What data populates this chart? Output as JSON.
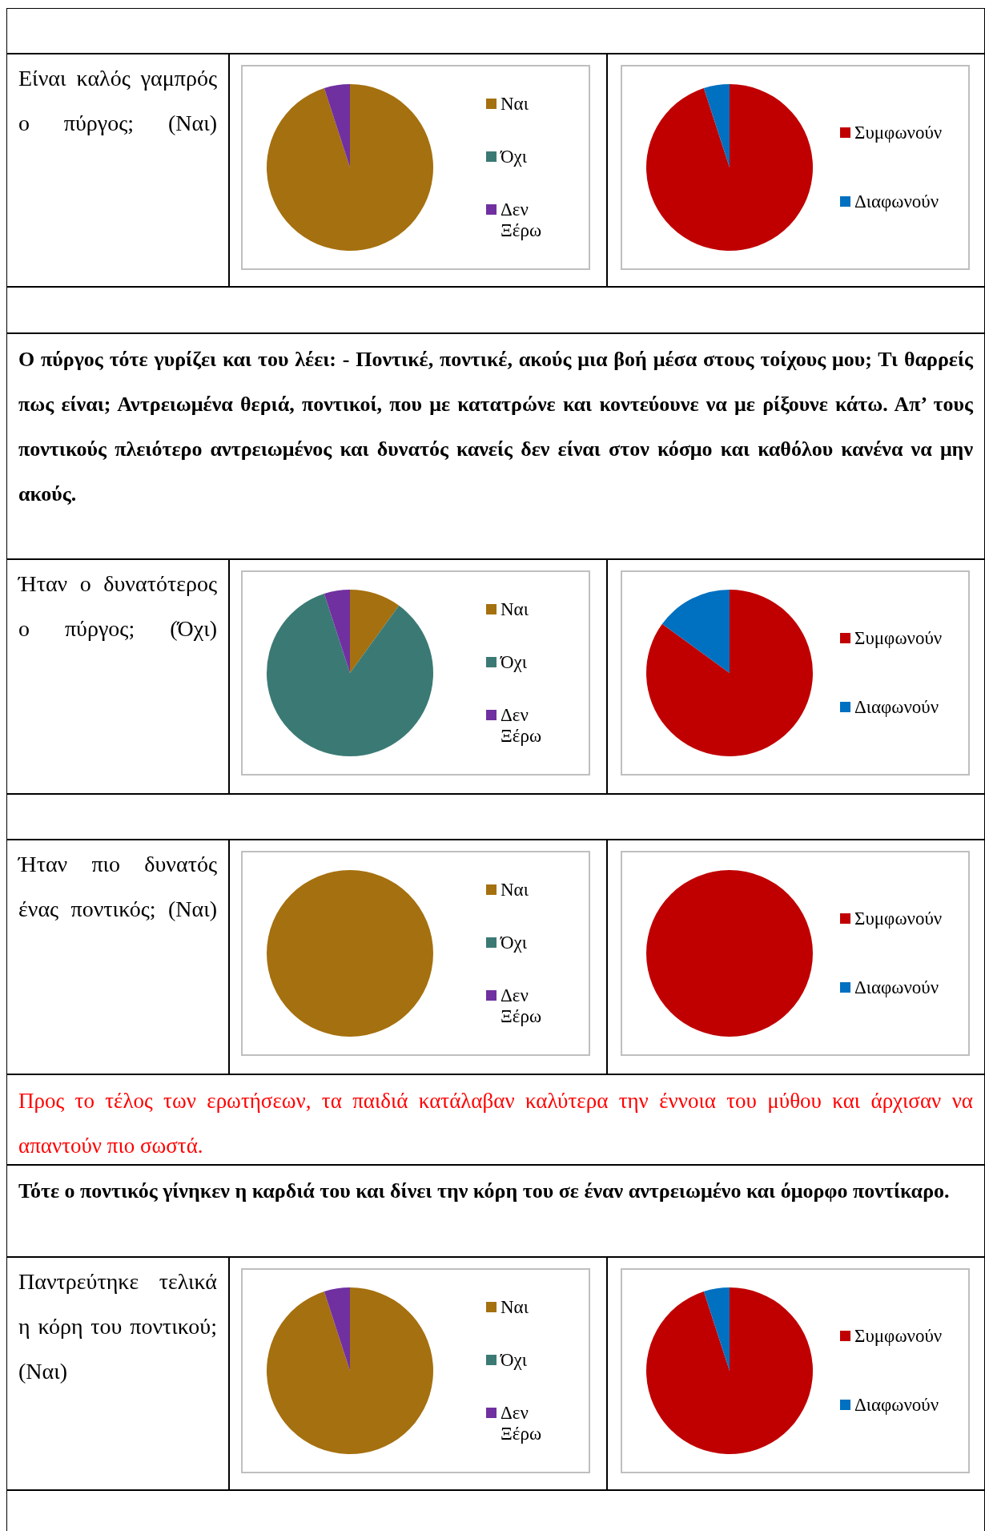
{
  "chart_data": [
    {
      "type": "other",
      "annotations": [
        "Είναι καλός γαμπρός ο πύργος; (Ναι)"
      ]
    },
    {
      "type": "pie",
      "categories": [
        "Ναι",
        "Όχι",
        "Δεν Ξέρω"
      ],
      "values": [
        95,
        0,
        5
      ],
      "colors": [
        "#a5700f",
        "#3b7a74",
        "#7030a0"
      ],
      "legend": "right"
    },
    {
      "type": "pie",
      "categories": [
        "Συμφωνούν",
        "Διαφωνούν"
      ],
      "values": [
        95,
        5
      ],
      "colors": [
        "#c00000",
        "#0070c0"
      ],
      "legend": "right"
    },
    {
      "type": "other",
      "annotations": [
        "Ο πύργος τότε γυρίζει και του λέει: - Ποντικέ, ποντικέ, ακούς μια βοή μέσα στους τοίχους μου; Τι θαρρείς πως είναι; Αντρειωμένα θεριά, ποντικοί, που με κατατρώνε και κοντεύουνε να με ρίξουνε κάτω. Απ’ τους ποντικούς πλειότερο αντρειωμένος και δυνατός κανείς δεν είναι στον κόσμο και καθόλου κανένα να μην ακούς."
      ]
    },
    {
      "type": "other",
      "annotations": [
        "Ήταν ο δυνατότερος ο πύργος; (Όχι)"
      ]
    },
    {
      "type": "pie",
      "categories": [
        "Ναι",
        "Όχι",
        "Δεν Ξέρω"
      ],
      "values": [
        10,
        85,
        5
      ],
      "colors": [
        "#a5700f",
        "#3b7a74",
        "#7030a0"
      ],
      "legend": "right"
    },
    {
      "type": "pie",
      "categories": [
        "Συμφωνούν",
        "Διαφωνούν"
      ],
      "values": [
        85,
        15
      ],
      "colors": [
        "#c00000",
        "#0070c0"
      ],
      "legend": "right"
    },
    {
      "type": "other",
      "annotations": [
        "Ήταν πιο δυνατός ένας ποντικός; (Ναι)"
      ]
    },
    {
      "type": "pie",
      "categories": [
        "Ναι",
        "Όχι",
        "Δεν Ξέρω"
      ],
      "values": [
        100,
        0,
        0
      ],
      "colors": [
        "#a5700f",
        "#3b7a74",
        "#7030a0"
      ],
      "legend": "right"
    },
    {
      "type": "pie",
      "categories": [
        "Συμφωνούν",
        "Διαφωνούν"
      ],
      "values": [
        100,
        0
      ],
      "colors": [
        "#c00000",
        "#0070c0"
      ],
      "legend": "right"
    },
    {
      "type": "other",
      "annotations": [
        "Προς το τέλος των ερωτήσεων, τα παιδιά κατάλαβαν καλύτερα την έννοια του μύθου και άρχισαν να απαντούν πιο σωστά."
      ]
    },
    {
      "type": "other",
      "annotations": [
        "Τότε ο ποντικός γίνηκεν η καρδιά του και δίνει την κόρη του σε έναν αντρειωμένο και όμορφο ποντίκαρο."
      ]
    },
    {
      "type": "other",
      "annotations": [
        "Παντρεύτηκε τελικά η κόρη του ποντικού; (Ναι)"
      ]
    },
    {
      "type": "pie",
      "categories": [
        "Ναι",
        "Όχι",
        "Δεν Ξέρω"
      ],
      "values": [
        95,
        0,
        5
      ],
      "colors": [
        "#a5700f",
        "#3b7a74",
        "#7030a0"
      ],
      "legend": "right"
    },
    {
      "type": "pie",
      "categories": [
        "Συμφωνούν",
        "Διαφωνούν"
      ],
      "values": [
        95,
        5
      ],
      "colors": [
        "#c00000",
        "#0070c0"
      ],
      "legend": "right"
    }
  ]
}
